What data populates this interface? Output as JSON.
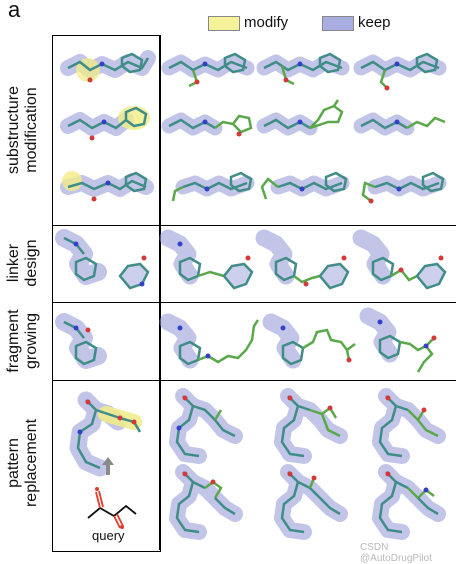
{
  "figure": {
    "panel_letter": "a",
    "legend": {
      "modify": {
        "label": "modify",
        "color": "#f6f29a"
      },
      "keep": {
        "label": "keep",
        "color": "#a9aee0"
      }
    },
    "rows": [
      {
        "id": "substructure",
        "line1": "substructure",
        "line2": "modification"
      },
      {
        "id": "linker",
        "line1": "linker",
        "line2": "design"
      },
      {
        "id": "fragment",
        "line1": "fragment",
        "line2": "growing"
      },
      {
        "id": "pattern",
        "line1": "pattern",
        "line2": "replacement"
      }
    ],
    "query_label": "query",
    "watermark": "CSDN @AutoDrugPilot",
    "colors": {
      "stick_green": "#5aa84a",
      "stick_teal": "#3f8d86",
      "nitrogen": "#3340c8",
      "oxygen": "#d23a3a",
      "keep_glow": "#8f96d6",
      "modify_glow": "#f1ec86",
      "query_ketone": "#e23b2a"
    }
  }
}
